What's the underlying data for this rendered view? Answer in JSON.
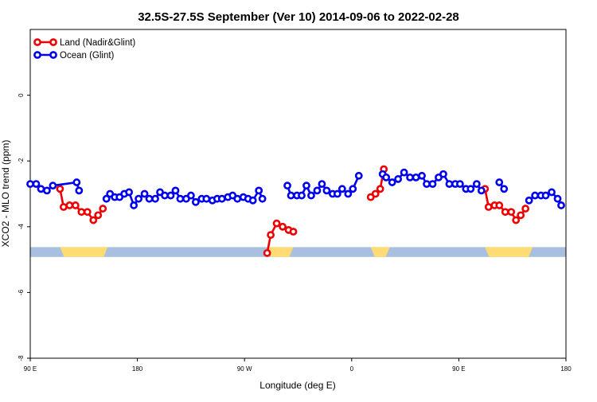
{
  "chart_data": {
    "type": "line",
    "title": "32.5S-27.5S September (Ver 10)   2014-09-06 to 2022-02-28",
    "xlabel": "Longitude (deg E)",
    "ylabel": "XCO2 - MLO trend (ppm)",
    "xlim": [
      90,
      540
    ],
    "ylim": [
      -8,
      2
    ],
    "x_ticks": [
      {
        "value": 90,
        "label": "90 E"
      },
      {
        "value": 180,
        "label": "180"
      },
      {
        "value": 270,
        "label": "90 W"
      },
      {
        "value": 360,
        "label": "0"
      },
      {
        "value": 450,
        "label": "90 E"
      },
      {
        "value": 540,
        "label": "180"
      }
    ],
    "y_ticks": [
      {
        "value": 0,
        "label": "0"
      },
      {
        "value": -2,
        "label": "-2"
      },
      {
        "value": -4,
        "label": "-4"
      },
      {
        "value": -6,
        "label": "-6"
      },
      {
        "value": -8,
        "label": "-8"
      }
    ],
    "grid": false,
    "legend_position": "top-left",
    "land_mask": {
      "y_range": [
        -4.92,
        -4.62
      ],
      "ocean_color": "#a8bfe0",
      "land_color": "#fedb73",
      "land_spans": [
        [
          115,
          155
        ],
        [
          289,
          311
        ],
        [
          376,
          392
        ],
        [
          472,
          512
        ]
      ]
    },
    "series": [
      {
        "name": "Land (Nadir&Glint)",
        "color": "#ee0000",
        "segments": [
          [
            [
              115,
              -2.85
            ],
            [
              118,
              -3.4
            ],
            [
              123,
              -3.35
            ],
            [
              128,
              -3.35
            ],
            [
              133,
              -3.55
            ],
            [
              138,
              -3.55
            ],
            [
              143,
              -3.8
            ],
            [
              147,
              -3.65
            ],
            [
              151,
              -3.45
            ]
          ],
          [
            [
              289,
              -4.8
            ],
            [
              292,
              -4.25
            ],
            [
              297,
              -3.9
            ],
            [
              302,
              -4.0
            ],
            [
              307,
              -4.1
            ],
            [
              311,
              -4.15
            ]
          ],
          [
            [
              376,
              -3.1
            ],
            [
              380,
              -3.0
            ],
            [
              384,
              -2.85
            ],
            [
              387,
              -2.25
            ]
          ],
          [
            [
              472,
              -2.85
            ],
            [
              475,
              -3.4
            ],
            [
              480,
              -3.35
            ],
            [
              484,
              -3.35
            ],
            [
              489,
              -3.55
            ],
            [
              494,
              -3.55
            ],
            [
              498,
              -3.8
            ],
            [
              502,
              -3.65
            ],
            [
              506,
              -3.45
            ]
          ]
        ]
      },
      {
        "name": "Ocean (Glint)",
        "color": "#0000ee",
        "segments": [
          [
            [
              90,
              -2.7
            ],
            [
              95,
              -2.7
            ],
            [
              99,
              -2.85
            ],
            [
              104,
              -2.9
            ],
            [
              109,
              -2.75
            ],
            [
              129,
              -2.65
            ],
            [
              131,
              -2.9
            ]
          ],
          [
            [
              154,
              -3.15
            ],
            [
              157,
              -3.0
            ],
            [
              161,
              -3.1
            ],
            [
              165,
              -3.1
            ],
            [
              169,
              -3.0
            ],
            [
              173,
              -2.95
            ],
            [
              177,
              -3.35
            ],
            [
              181,
              -3.15
            ],
            [
              186,
              -3.0
            ],
            [
              190,
              -3.15
            ],
            [
              195,
              -3.15
            ],
            [
              199,
              -2.95
            ],
            [
              203,
              -3.05
            ],
            [
              208,
              -3.05
            ],
            [
              212,
              -2.9
            ],
            [
              216,
              -3.15
            ],
            [
              221,
              -3.15
            ],
            [
              225,
              -3.05
            ],
            [
              229,
              -3.25
            ],
            [
              234,
              -3.15
            ],
            [
              238,
              -3.15
            ],
            [
              243,
              -3.2
            ],
            [
              247,
              -3.15
            ],
            [
              251,
              -3.15
            ],
            [
              256,
              -3.1
            ],
            [
              260,
              -3.05
            ],
            [
              264,
              -3.15
            ],
            [
              269,
              -3.1
            ],
            [
              273,
              -3.15
            ],
            [
              277,
              -3.2
            ],
            [
              282,
              -2.9
            ],
            [
              285,
              -3.15
            ]
          ],
          [
            [
              306,
              -2.75
            ],
            [
              309,
              -3.05
            ],
            [
              314,
              -3.05
            ],
            [
              318,
              -3.05
            ],
            [
              322,
              -2.75
            ],
            [
              326,
              -3.05
            ],
            [
              331,
              -2.9
            ],
            [
              335,
              -2.7
            ],
            [
              339,
              -2.9
            ],
            [
              344,
              -3.0
            ],
            [
              348,
              -3.0
            ],
            [
              352,
              -2.85
            ],
            [
              357,
              -3.0
            ],
            [
              361,
              -2.85
            ],
            [
              366,
              -2.45
            ]
          ],
          [
            [
              386,
              -2.4
            ],
            [
              389,
              -2.5
            ],
            [
              394,
              -2.65
            ],
            [
              399,
              -2.55
            ],
            [
              404,
              -2.35
            ],
            [
              409,
              -2.5
            ],
            [
              414,
              -2.5
            ],
            [
              419,
              -2.45
            ],
            [
              423,
              -2.7
            ],
            [
              428,
              -2.7
            ],
            [
              433,
              -2.5
            ],
            [
              437,
              -2.4
            ],
            [
              442,
              -2.7
            ],
            [
              447,
              -2.7
            ],
            [
              451,
              -2.7
            ],
            [
              456,
              -2.85
            ],
            [
              460,
              -2.85
            ],
            [
              465,
              -2.7
            ],
            [
              469,
              -2.9
            ]
          ],
          [
            [
              484,
              -2.65
            ],
            [
              488,
              -2.85
            ]
          ],
          [
            [
              509,
              -3.2
            ],
            [
              514,
              -3.05
            ],
            [
              519,
              -3.05
            ],
            [
              523,
              -3.05
            ],
            [
              528,
              -2.95
            ],
            [
              533,
              -3.15
            ],
            [
              536,
              -3.35
            ]
          ]
        ]
      }
    ]
  }
}
